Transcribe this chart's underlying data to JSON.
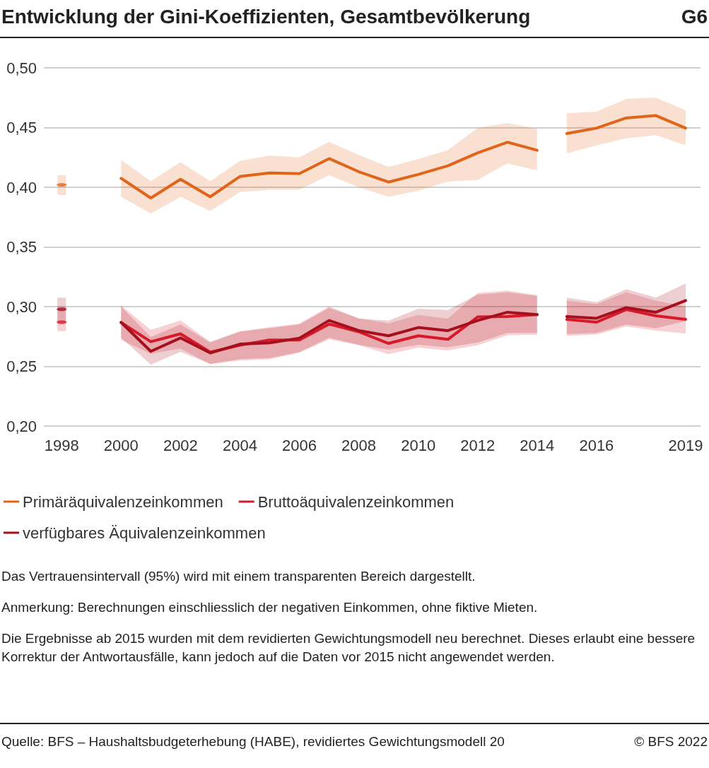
{
  "chart_data": {
    "type": "line",
    "title": "Entwicklung der Gini-Koeffizienten, Gesamtbevölkerung",
    "subtitle": "G6",
    "annotations": [
      "Das Vertrauensintervall (95%) wird mit einem transparenten Bereich dargestellt.",
      "Anmerkung: Berechnungen einschliesslich der negativen Einkommen, ohne fiktive Mieten.",
      "Die Ergebnisse ab 2015 wurden mit dem revidierten Gewichtungsmodell neu berechnet. Dieses erlaubt eine bessere Korrektur der Antwortausfälle, kann jedoch auf die Daten vor 2015 nicht angewendet werden.",
      "Quelle: BFS – Haushaltsbudgeterhebung (HABE), revidiertes Gewichtungsmodell 20",
      "© BFS 2022"
    ],
    "xlim": [
      1997.4,
      2019.5
    ],
    "xticks": [
      1998,
      2000,
      2002,
      2004,
      2006,
      2008,
      2010,
      2012,
      2014,
      2016,
      2019
    ],
    "ylim": [
      0.2,
      0.5
    ],
    "yticks": [
      {
        "value": 0.2,
        "label": "0,20"
      },
      {
        "value": 0.25,
        "label": "0,25"
      },
      {
        "value": 0.3,
        "label": "0,30"
      },
      {
        "value": 0.35,
        "label": "0,35"
      },
      {
        "value": 0.4,
        "label": "0,40"
      },
      {
        "value": 0.45,
        "label": "0,45"
      },
      {
        "value": 0.5,
        "label": "0,50"
      }
    ],
    "grid": "y",
    "legend": "bottom",
    "line_style": "solid",
    "series": [
      {
        "type": "scatter",
        "color": "#e0651a",
        "x": [
          1998
        ],
        "values": [
          0.402
        ],
        "errors": [
          [
            0.3935,
            0.41
          ]
        ]
      },
      {
        "name": "Primäräquivalenzeinkommen",
        "color": "#e0651a",
        "x": [
          2000,
          2001,
          2002,
          2003,
          2004,
          2005,
          2006,
          2007,
          2008,
          2009,
          2010,
          2011,
          2012,
          2013,
          2014
        ],
        "values": [
          0.4075,
          0.391,
          0.4067,
          0.392,
          0.409,
          0.412,
          0.4114,
          0.424,
          0.413,
          0.4043,
          0.4107,
          0.418,
          0.4288,
          0.4377,
          0.431
        ],
        "upper": [
          0.423,
          0.405,
          0.421,
          0.405,
          0.422,
          0.4265,
          0.425,
          0.438,
          0.427,
          0.417,
          0.4235,
          0.431,
          0.4497,
          0.4537,
          0.449
        ],
        "lower": [
          0.392,
          0.378,
          0.392,
          0.38,
          0.396,
          0.398,
          0.398,
          0.41,
          0.4,
          0.392,
          0.397,
          0.4047,
          0.406,
          0.42,
          0.414
        ]
      },
      {
        "color": "#e0651a",
        "x": [
          2015,
          2016,
          2017,
          2018,
          2019
        ],
        "values": [
          0.445,
          0.4495,
          0.458,
          0.46,
          0.4495
        ],
        "upper": [
          0.462,
          0.4633,
          0.474,
          0.475,
          0.4645
        ],
        "lower": [
          0.4284,
          0.435,
          0.441,
          0.4436,
          0.435
        ]
      },
      {
        "type": "scatter",
        "color": "#d7192a",
        "x": [
          1998
        ],
        "values": [
          0.287
        ],
        "errors": [
          [
            0.2795,
            0.3
          ]
        ]
      },
      {
        "name": "Bruttoäquivalenzeinkommen",
        "color": "#d7192a",
        "x": [
          2000,
          2001,
          2002,
          2003,
          2004,
          2005,
          2006,
          2007,
          2008,
          2009,
          2010,
          2011,
          2012,
          2013,
          2014
        ],
        "values": [
          0.2868,
          0.2706,
          0.2772,
          0.2618,
          0.2677,
          0.272,
          0.272,
          0.2854,
          0.279,
          0.2692,
          0.2756,
          0.2726,
          0.2914,
          0.2917,
          0.2933
        ],
        "upper": [
          0.301,
          0.2805,
          0.2884,
          0.2706,
          0.2795,
          0.2829,
          0.2858,
          0.3002,
          0.2903,
          0.286,
          0.293,
          0.29,
          0.3115,
          0.3134,
          0.3095
        ],
        "lower": [
          0.2722,
          0.2605,
          0.265,
          0.2519,
          0.2549,
          0.2559,
          0.2614,
          0.2727,
          0.2677,
          0.2602,
          0.2657,
          0.2633,
          0.2677,
          0.276,
          0.2765
        ]
      },
      {
        "color": "#d7192a",
        "x": [
          2015,
          2016,
          2017,
          2018,
          2019
        ],
        "values": [
          0.2893,
          0.287,
          0.2976,
          0.2923,
          0.2893
        ],
        "upper": [
          0.305,
          0.302,
          0.312,
          0.305,
          0.3
        ],
        "lower": [
          0.2756,
          0.2766,
          0.2834,
          0.2799,
          0.2775
        ]
      },
      {
        "type": "scatter",
        "color": "#a50f1e",
        "x": [
          1998
        ],
        "values": [
          0.2978
        ],
        "errors": [
          [
            0.287,
            0.3075
          ]
        ]
      },
      {
        "name": "verfügbares Äquivalenzeinkommen",
        "color": "#a50f1e",
        "x": [
          2000,
          2001,
          2002,
          2003,
          2004,
          2005,
          2006,
          2007,
          2008,
          2009,
          2010,
          2011,
          2012,
          2013,
          2014
        ],
        "values": [
          0.2868,
          0.2626,
          0.2738,
          0.2612,
          0.2686,
          0.2697,
          0.2736,
          0.2884,
          0.2799,
          0.2756,
          0.2825,
          0.2799,
          0.2884,
          0.2953,
          0.2933
        ],
        "upper": [
          0.3,
          0.2745,
          0.285,
          0.27,
          0.279,
          0.282,
          0.285,
          0.299,
          0.29,
          0.2883,
          0.2982,
          0.2972,
          0.31,
          0.312,
          0.309
        ],
        "lower": [
          0.274,
          0.2515,
          0.2622,
          0.252,
          0.256,
          0.257,
          0.262,
          0.274,
          0.268,
          0.264,
          0.268,
          0.266,
          0.27,
          0.278,
          0.278
        ]
      },
      {
        "color": "#a50f1e",
        "x": [
          2015,
          2016,
          2017,
          2018,
          2019
        ],
        "values": [
          0.2917,
          0.2903,
          0.2992,
          0.2953,
          0.3051
        ],
        "upper": [
          0.3075,
          0.3037,
          0.3146,
          0.3075,
          0.3194
        ],
        "lower": [
          0.277,
          0.278,
          0.285,
          0.282,
          0.288
        ]
      }
    ]
  }
}
